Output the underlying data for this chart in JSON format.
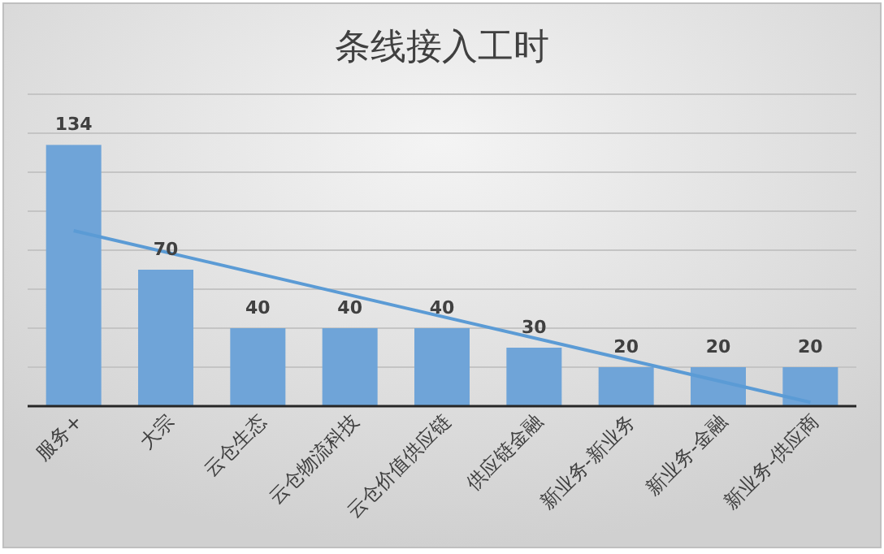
{
  "chart_data": {
    "type": "bar",
    "title": "条线接入工时",
    "categories": [
      "服务+",
      "大宗",
      "云仓生态",
      "云仓物流科技",
      "云仓价值供应链",
      "供应链金融",
      "新业务-新业务",
      "新业务-金融",
      "新业务-供应商"
    ],
    "series": [
      {
        "color": "#6fa4d8",
        "values": [
          134,
          70,
          40,
          40,
          40,
          30,
          20,
          20,
          20
        ],
        "value_labels": [
          "134",
          "70",
          "40",
          "40",
          "40",
          "30",
          "20",
          "20",
          "20"
        ]
      },
      {
        "type": "line",
        "color": "#5b9bd5",
        "x": [
          "服务+",
          "新业务-供应商"
        ],
        "values": [
          90,
          2
        ]
      }
    ],
    "ylim": [
      0,
      160
    ],
    "yticks": [
      0,
      20,
      40,
      60,
      80,
      100,
      120,
      140,
      160
    ],
    "tick_labels": "x",
    "grid": "y"
  }
}
